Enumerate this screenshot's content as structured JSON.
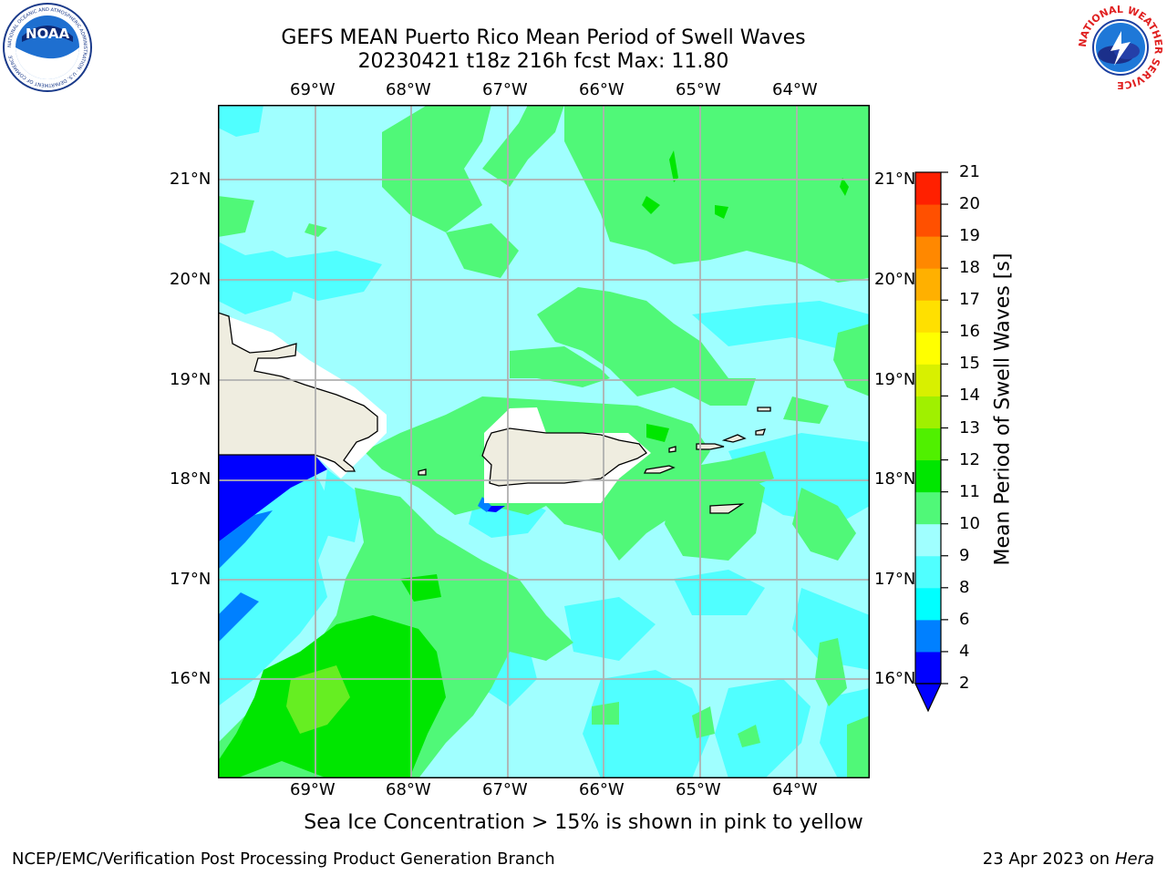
{
  "header": {
    "title_line1": "GEFS MEAN Puerto Rico Mean Period of Swell Waves",
    "title_line2": "20230421 t18z 216h fcst   Max: 11.80"
  },
  "logos": {
    "left": {
      "text": "NOAA",
      "ring_text": "NATIONAL OCEANIC AND ATMOSPHERIC ADMINISTRATION · U.S. DEPARTMENT OF COMMERCE"
    },
    "right": {
      "ring_text": "NATIONAL WEATHER SERVICE"
    }
  },
  "map": {
    "lon_ticks": [
      "69°W",
      "68°W",
      "67°W",
      "66°W",
      "65°W",
      "64°W"
    ],
    "lat_ticks": [
      "21°N",
      "20°N",
      "19°N",
      "18°N",
      "17°N",
      "16°N"
    ]
  },
  "colorbar": {
    "label": "Mean Period of Swell Waves [s]",
    "ticks": [
      "2",
      "4",
      "6",
      "8",
      "9",
      "10",
      "11",
      "12",
      "13",
      "14",
      "15",
      "16",
      "17",
      "18",
      "19",
      "20",
      "21"
    ],
    "colors": [
      "#0000ff",
      "#0080ff",
      "#00ffff",
      "#50ffff",
      "#a0ffff",
      "#50f878",
      "#00e600",
      "#50f000",
      "#a0f000",
      "#d8f000",
      "#ffff00",
      "#ffe000",
      "#ffb000",
      "#ff8800",
      "#ff5000",
      "#ff2000"
    ]
  },
  "note": "Sea Ice Concentration > 15% is shown in pink to yellow",
  "footer": {
    "left": "NCEP/EMC/Verification Post Processing Product Generation Branch",
    "right_prefix": "23 Apr 2023 on ",
    "right_host": "Hera"
  },
  "palette": {
    "light_cyan": "#a0ffff",
    "cyan": "#50ffff",
    "bright_cyan": "#00ffff",
    "light_green": "#50f878",
    "green": "#00e600",
    "lime": "#66ee22",
    "blue": "#0000ff",
    "mid_blue": "#0080ff",
    "land": "#efede0",
    "grid": "#b0b0b0"
  }
}
